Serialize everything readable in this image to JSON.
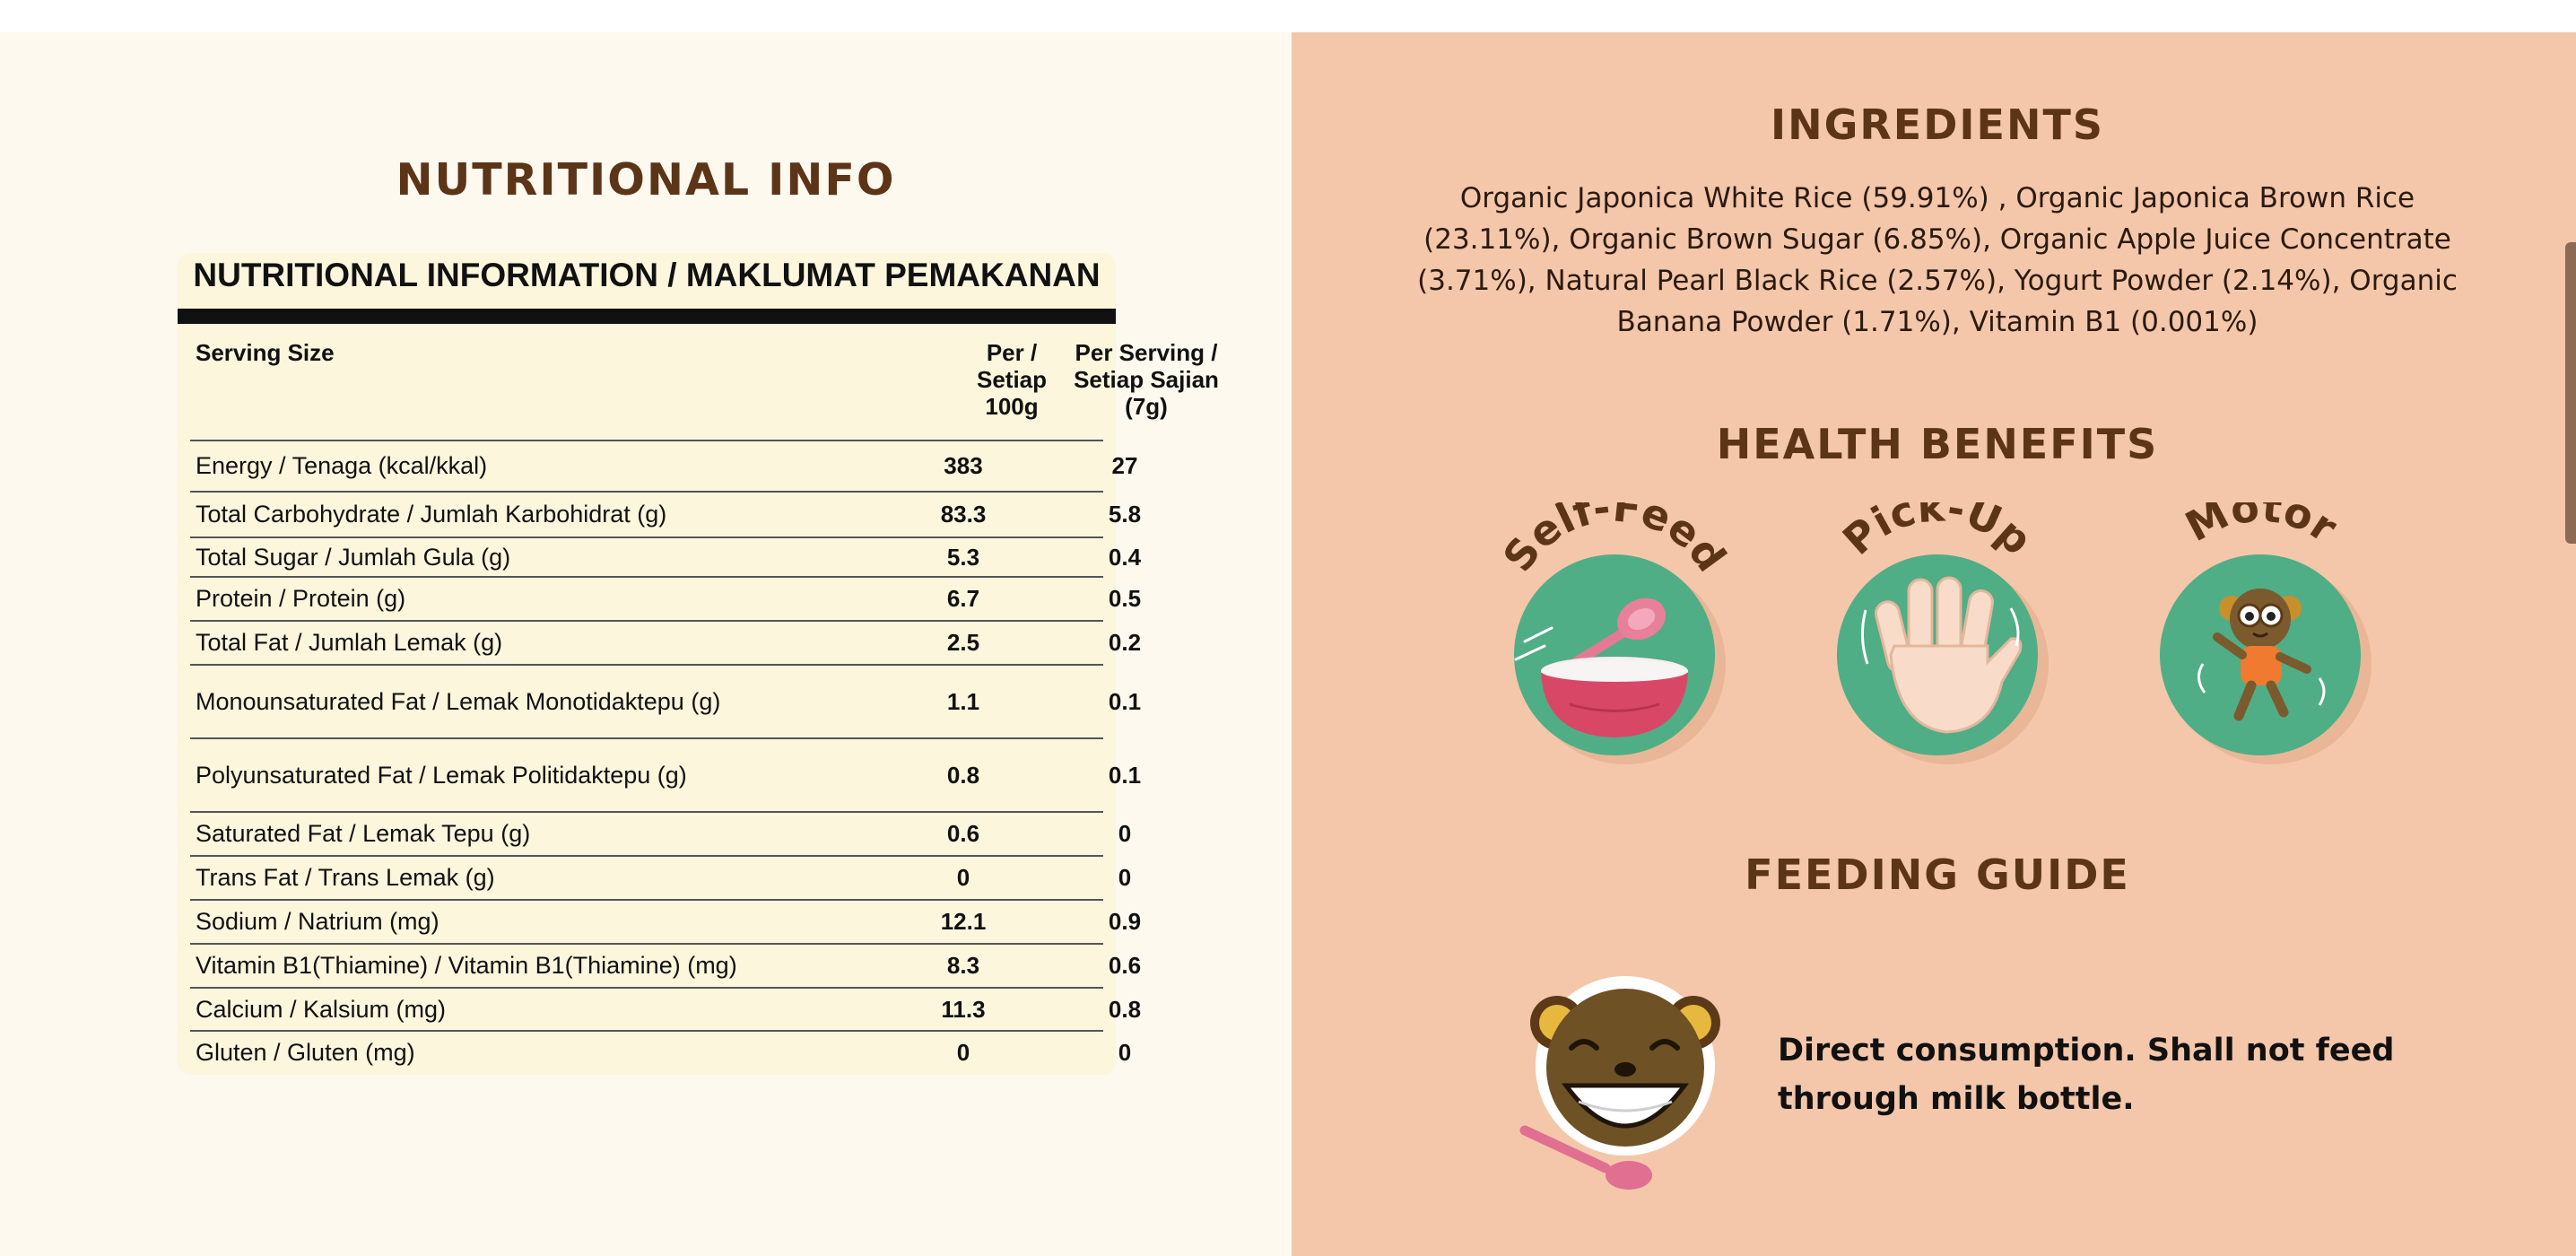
{
  "nutrition": {
    "heading": "NUTRITIONAL INFO",
    "card_title": "NUTRITIONAL INFORMATION / MAKLUMAT PEMAKANAN",
    "serving_size_label": "Serving Size",
    "col_per_100g": [
      "Per /",
      "Setiap",
      "100g"
    ],
    "col_per_serving": [
      "Per Serving /",
      "Setiap Sajian",
      "(7g)"
    ],
    "rows": [
      {
        "name": "Energy / Tenaga (kcal/kkal)",
        "per_100g": "383",
        "per_serving": "27"
      },
      {
        "name": "Total Carbohydrate / Jumlah Karbohidrat (g)",
        "per_100g": "83.3",
        "per_serving": "5.8"
      },
      {
        "name": "Total Sugar / Jumlah Gula (g)",
        "per_100g": "5.3",
        "per_serving": "0.4"
      },
      {
        "name": "Protein / Protein (g)",
        "per_100g": "6.7",
        "per_serving": "0.5"
      },
      {
        "name": "Total Fat / Jumlah Lemak (g)",
        "per_100g": "2.5",
        "per_serving": "0.2"
      },
      {
        "name": "Monounsaturated Fat / Lemak Monotidaktepu (g)",
        "per_100g": "1.1",
        "per_serving": "0.1"
      },
      {
        "name": "Polyunsaturated Fat / Lemak Politidaktepu (g)",
        "per_100g": "0.8",
        "per_serving": "0.1"
      },
      {
        "name": "Saturated Fat / Lemak Tepu (g)",
        "per_100g": "0.6",
        "per_serving": "0"
      },
      {
        "name": "Trans Fat / Trans Lemak (g)",
        "per_100g": "0",
        "per_serving": "0"
      },
      {
        "name": "Sodium / Natrium (mg)",
        "per_100g": "12.1",
        "per_serving": "0.9"
      },
      {
        "name": "Vitamin B1(Thiamine) / Vitamin B1(Thiamine) (mg)",
        "per_100g": "8.3",
        "per_serving": "0.6"
      },
      {
        "name": "Calcium / Kalsium (mg)",
        "per_100g": "11.3",
        "per_serving": "0.8"
      },
      {
        "name": "Gluten / Gluten (mg)",
        "per_100g": "0",
        "per_serving": "0"
      }
    ]
  },
  "ingredients": {
    "heading": "INGREDIENTS",
    "text": "Organic Japonica White Rice (59.91%) , Organic Japonica Brown Rice (23.11%), Organic Brown Sugar (6.85%), Organic Apple Juice Concentrate (3.71%), Natural Pearl Black Rice (2.57%), Yogurt Powder (2.14%), Organic Banana Powder (1.71%), Vitamin B1 (0.001%)"
  },
  "health_benefits": {
    "heading": "HEALTH BENEFITS",
    "items": [
      {
        "label": "Self-Feed",
        "icon": "bowl-spoon-icon"
      },
      {
        "label": "Pick-Up",
        "icon": "hand-icon"
      },
      {
        "label": "Motor",
        "icon": "monkey-dancing-icon"
      }
    ]
  },
  "feeding_guide": {
    "heading": "FEEDING GUIDE",
    "text": "Direct consumption. Shall not feed through milk bottle.",
    "icon": "monkey-spoon-icon"
  },
  "colors": {
    "left_bg": "#fdf9ef",
    "right_bg": "#f4c7aa",
    "heading": "#5c3417",
    "badge_green": "#4fae86",
    "card_bg": "#fcf6dd"
  }
}
